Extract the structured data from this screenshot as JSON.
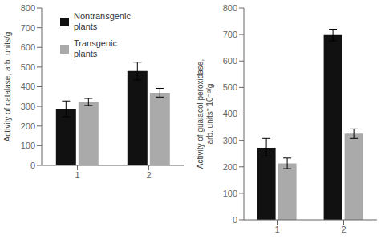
{
  "chart_data": [
    {
      "type": "bar",
      "categories": [
        "1",
        "2"
      ],
      "ylabel": "Activity of catalase, arb. units/g",
      "ylim": [
        0,
        800
      ],
      "yticks": [
        0,
        100,
        200,
        300,
        400,
        500,
        600,
        700,
        800
      ],
      "legend": "upper left",
      "series": [
        {
          "name": "Nontransgenic\nplants",
          "color": "#111111",
          "values": [
            288,
            480
          ],
          "errors": [
            40,
            45
          ]
        },
        {
          "name": "Transgenic\nplants",
          "color": "#aaaaaa",
          "values": [
            323,
            370
          ],
          "errors": [
            18,
            22
          ]
        }
      ]
    },
    {
      "type": "bar",
      "categories": [
        "1",
        "2"
      ],
      "ylabel": "Activity of guaiacol peroxidase,\narb. units* 10⁻³/g",
      "ylim": [
        0,
        800
      ],
      "yticks": [
        0,
        100,
        200,
        300,
        400,
        500,
        600,
        700,
        800
      ],
      "series": [
        {
          "color": "#111111",
          "values": [
            272,
            698
          ],
          "errors": [
            35,
            22
          ]
        },
        {
          "color": "#aaaaaa",
          "values": [
            213,
            325
          ],
          "errors": [
            20,
            18
          ]
        }
      ]
    }
  ]
}
